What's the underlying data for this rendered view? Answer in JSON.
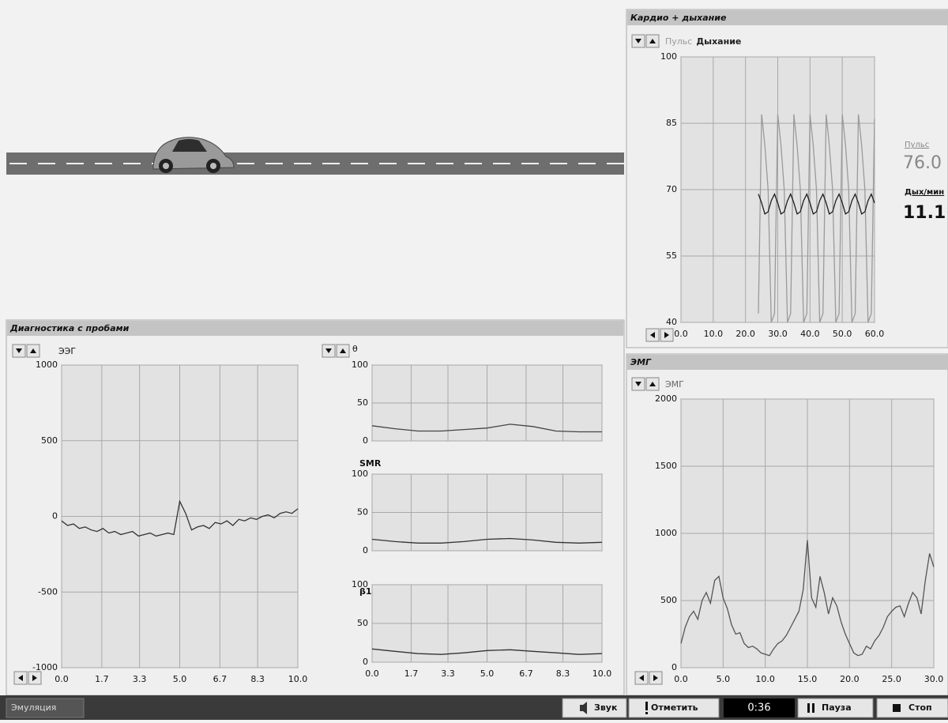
{
  "cardio": {
    "title": "Кардио + дыхание",
    "chart": {
      "xlim": [
        0,
        60
      ],
      "xticks": [
        {
          "value": 0,
          "label": "0.0"
        },
        {
          "value": 10,
          "label": "10.0"
        },
        {
          "value": 20,
          "label": "20.0"
        },
        {
          "value": 30,
          "label": "30.0"
        },
        {
          "value": 40,
          "label": "40.0"
        },
        {
          "value": 50,
          "label": "50.0"
        },
        {
          "value": 60,
          "label": "60.0"
        }
      ],
      "ylim": [
        40,
        100
      ],
      "yticks": [
        40,
        55,
        70,
        85,
        100
      ],
      "x": [
        24,
        25,
        26,
        27,
        28,
        29,
        30,
        31,
        32,
        33,
        34,
        35,
        36,
        37,
        38,
        39,
        40,
        41,
        42,
        43,
        44,
        45,
        46,
        47,
        48,
        49,
        50,
        51,
        52,
        53,
        54,
        55,
        56,
        57,
        58,
        59,
        60
      ],
      "series": [
        {
          "name": "Пульс",
          "color": "#9a9a9a",
          "values": [
            42,
            87,
            80,
            70,
            40,
            42,
            87,
            80,
            70,
            40,
            42,
            87,
            80,
            70,
            40,
            42,
            87,
            80,
            70,
            40,
            42,
            87,
            80,
            70,
            40,
            42,
            87,
            80,
            70,
            40,
            42,
            87,
            80,
            70,
            40,
            42,
            86
          ]
        },
        {
          "name": "Дыхание",
          "color": "#1e1e1e",
          "values": [
            69,
            67,
            64.5,
            65,
            67.5,
            69,
            67,
            64.5,
            65,
            67.5,
            69,
            67,
            64.5,
            65,
            67.5,
            69,
            67,
            64.5,
            65,
            67.5,
            69,
            67,
            64.5,
            65,
            67.5,
            69,
            67,
            64.5,
            65,
            67.5,
            69,
            67,
            64.5,
            65,
            67.5,
            69,
            67
          ]
        }
      ]
    },
    "readouts": [
      {
        "label": "Пульс",
        "value": "76.0"
      },
      {
        "label": "Дых/мин",
        "value": "11.1"
      }
    ]
  },
  "diagnostics": {
    "title": "Диагностика с пробами",
    "eeg": {
      "label": "ЭЭГ",
      "color": "#333333",
      "xlim": [
        0,
        10
      ],
      "xticks": [
        {
          "value": 0,
          "label": "0.0"
        },
        {
          "value": 1.7,
          "label": "1.7"
        },
        {
          "value": 3.3,
          "label": "3.3"
        },
        {
          "value": 5,
          "label": "5.0"
        },
        {
          "value": 6.7,
          "label": "6.7"
        },
        {
          "value": 8.3,
          "label": "8.3"
        },
        {
          "value": 10,
          "label": "10.0"
        }
      ],
      "ylim": [
        -1000,
        1000
      ],
      "yticks": [
        -1000,
        -500,
        0,
        500,
        1000
      ],
      "x": [
        0,
        0.25,
        0.5,
        0.75,
        1,
        1.25,
        1.5,
        1.75,
        2,
        2.25,
        2.5,
        2.75,
        3,
        3.25,
        3.5,
        3.75,
        4,
        4.25,
        4.5,
        4.75,
        5,
        5.25,
        5.5,
        5.75,
        6,
        6.25,
        6.5,
        6.75,
        7,
        7.25,
        7.5,
        7.75,
        8,
        8.25,
        8.5,
        8.75,
        9,
        9.25,
        9.5,
        9.75,
        10
      ],
      "values": [
        -30,
        -60,
        -50,
        -80,
        -70,
        -90,
        -100,
        -80,
        -110,
        -100,
        -120,
        -110,
        -100,
        -130,
        -120,
        -110,
        -130,
        -120,
        -110,
        -120,
        100,
        20,
        -90,
        -70,
        -60,
        -80,
        -40,
        -50,
        -30,
        -60,
        -20,
        -30,
        -10,
        -20,
        0,
        10,
        -10,
        20,
        30,
        20,
        50
      ]
    },
    "rhythms": {
      "xlim": [
        0,
        10
      ],
      "xticks": [
        {
          "value": 0,
          "label": "0.0"
        },
        {
          "value": 1.7,
          "label": "1.7"
        },
        {
          "value": 3.3,
          "label": "3.3"
        },
        {
          "value": 5,
          "label": "5.0"
        },
        {
          "value": 6.7,
          "label": "6.7"
        },
        {
          "value": 8.3,
          "label": "8.3"
        },
        {
          "value": 10,
          "label": "10.0"
        }
      ],
      "x": [
        0,
        1,
        2,
        3,
        4,
        5,
        6,
        7,
        8,
        9,
        10
      ],
      "charts": [
        {
          "label": "θ",
          "color": "#444444",
          "ylim": [
            0,
            100
          ],
          "yticks": [
            0,
            50,
            100
          ],
          "values": [
            20,
            16,
            13,
            13,
            15,
            17,
            22,
            19,
            13,
            12,
            12
          ]
        },
        {
          "label": "SMR",
          "color": "#333333",
          "ylim": [
            0,
            100
          ],
          "yticks": [
            0,
            50,
            100
          ],
          "values": [
            15,
            12,
            10,
            10,
            12,
            15,
            16,
            14,
            11,
            10,
            11
          ]
        },
        {
          "label": "β1",
          "color": "#333333",
          "ylim": [
            0,
            100
          ],
          "yticks": [
            0,
            50,
            100
          ],
          "values": [
            17,
            14,
            11,
            10,
            12,
            15,
            16,
            14,
            12,
            10,
            11
          ]
        }
      ]
    }
  },
  "emg": {
    "title": "ЭМГ",
    "chart": {
      "label": "ЭМГ",
      "color": "#555555",
      "xlim": [
        0,
        30
      ],
      "xticks": [
        {
          "value": 0,
          "label": "0.0"
        },
        {
          "value": 5,
          "label": "5.0"
        },
        {
          "value": 10,
          "label": "10.0"
        },
        {
          "value": 15,
          "label": "15.0"
        },
        {
          "value": 20,
          "label": "20.0"
        },
        {
          "value": 25,
          "label": "25.0"
        },
        {
          "value": 30,
          "label": "30.0"
        }
      ],
      "ylim": [
        0,
        2000
      ],
      "yticks": [
        0,
        500,
        1000,
        1500,
        2000
      ],
      "x": [
        0,
        0.5,
        1,
        1.5,
        2,
        2.5,
        3,
        3.5,
        4,
        4.5,
        5,
        5.5,
        6,
        6.5,
        7,
        7.5,
        8,
        8.5,
        9,
        9.5,
        10,
        10.5,
        11,
        11.5,
        12,
        12.5,
        13,
        13.5,
        14,
        14.5,
        15,
        15.5,
        16,
        16.5,
        17,
        17.5,
        18,
        18.5,
        19,
        19.5,
        20,
        20.5,
        21,
        21.5,
        22,
        22.5,
        23,
        23.5,
        24,
        24.5,
        25,
        25.5,
        26,
        26.5,
        27,
        27.5,
        28,
        28.5,
        29,
        29.5,
        30
      ],
      "values": [
        180,
        300,
        380,
        420,
        360,
        500,
        560,
        480,
        650,
        680,
        520,
        440,
        320,
        250,
        260,
        180,
        150,
        160,
        140,
        110,
        100,
        90,
        140,
        180,
        200,
        240,
        300,
        360,
        420,
        580,
        950,
        520,
        450,
        680,
        560,
        400,
        520,
        460,
        340,
        250,
        180,
        110,
        90,
        100,
        160,
        140,
        200,
        240,
        300,
        380,
        420,
        450,
        460,
        380,
        480,
        560,
        520,
        400,
        650,
        850,
        750
      ]
    }
  },
  "status_bar": {
    "mode": "Эмуляция",
    "sound": "Звук",
    "mark": "Отметить",
    "timer": "0:36",
    "pause": "Пауза",
    "stop": "Стоп"
  }
}
